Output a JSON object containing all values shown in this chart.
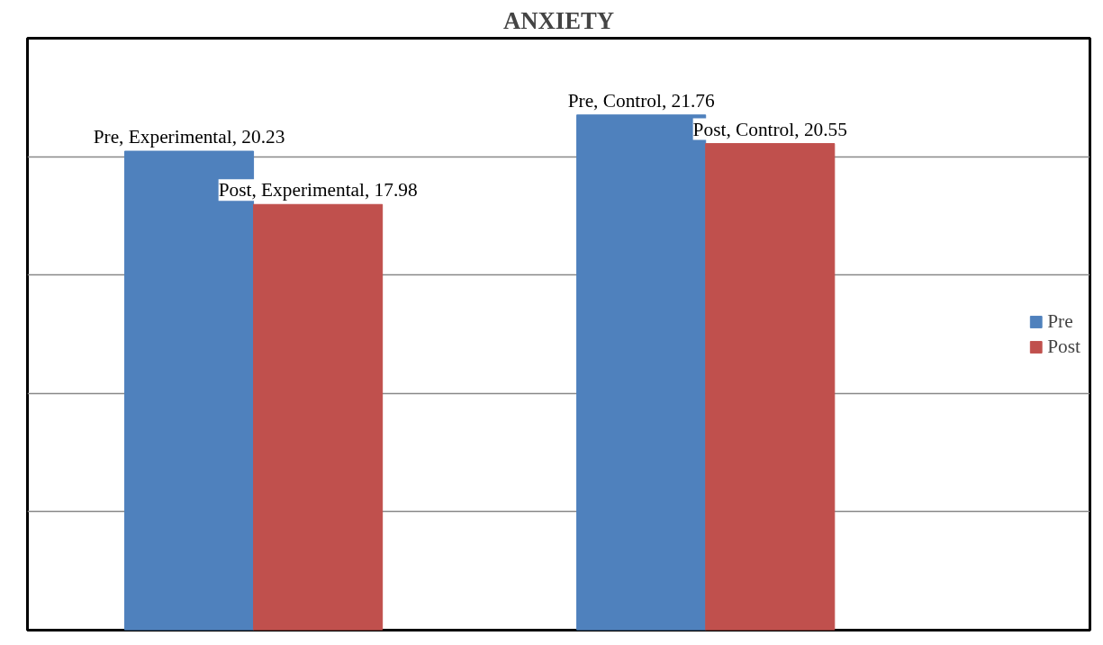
{
  "chart_data": {
    "type": "bar",
    "title": "ANXIETY",
    "categories": [
      null,
      null
    ],
    "series": [
      {
        "name": "Pre",
        "color": "#4f81bd",
        "values": [
          20.23,
          21.76
        ],
        "value_labels": [
          "Pre, Experimental, 20.23",
          "Pre, Control, 21.76"
        ]
      },
      {
        "name": "Post",
        "color": "#c0504d",
        "values": [
          17.98,
          20.55
        ],
        "value_labels": [
          "Post, Experimental, 17.98",
          "Post, Control, 20.55"
        ]
      }
    ],
    "ylim": [
      0,
      25
    ],
    "grid": "y",
    "legend": "right",
    "tick_labels": false
  }
}
